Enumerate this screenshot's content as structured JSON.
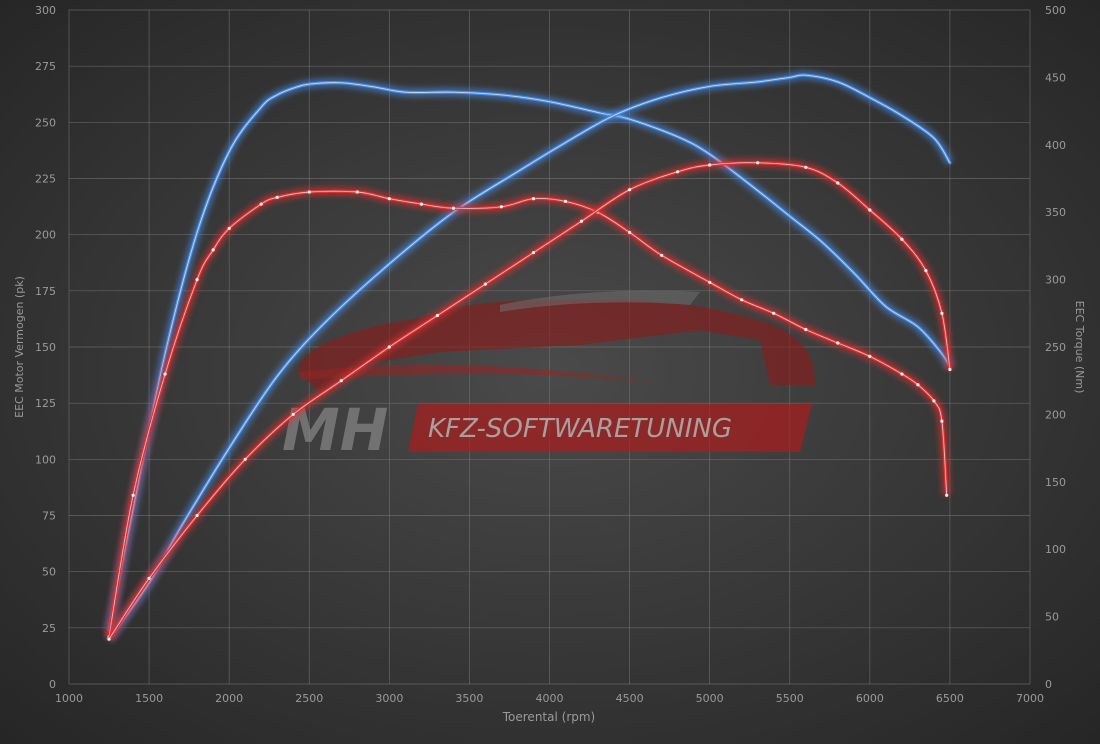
{
  "chart_data": {
    "type": "line",
    "xlabel": "Toerental (rpm)",
    "ylabel_left": "EEC Motor Vermogen (pk)",
    "ylabel_right": "EEC Torque (Nm)",
    "xlim": [
      1000,
      7000
    ],
    "ylim_left": [
      0,
      300
    ],
    "ylim_right": [
      0,
      500
    ],
    "x_ticks": [
      1000,
      1500,
      2000,
      2500,
      3000,
      3500,
      4000,
      4500,
      5000,
      5500,
      6000,
      6500,
      7000
    ],
    "y_ticks_left": [
      0,
      25,
      50,
      75,
      100,
      125,
      150,
      175,
      200,
      225,
      250,
      275,
      300
    ],
    "y_ticks_right": [
      0,
      50,
      100,
      150,
      200,
      250,
      300,
      350,
      400,
      450,
      500
    ],
    "grid": true,
    "logo": {
      "mark": "MH",
      "text": "KFZ-SOFTWARETUNING"
    },
    "colors": {
      "tuned": "#4a8ee8",
      "stock": "#e03030",
      "grid": "#7a7a7a",
      "text": "#9a9a9a"
    },
    "series": [
      {
        "key": "tuned_torque",
        "axis": "right",
        "color": "#4a8ee8",
        "dotted": false,
        "x": [
          1250,
          1400,
          1600,
          1800,
          2000,
          2200,
          2300,
          2400,
          2500,
          2700,
          2900,
          3100,
          3400,
          3700,
          4000,
          4300,
          4500,
          4800,
          5000,
          5300,
          5500,
          5700,
          5900,
          6100,
          6300,
          6450,
          6500
        ],
        "y": [
          40,
          130,
          245,
          335,
          395,
          428,
          437,
          442,
          445,
          446,
          443,
          439,
          439,
          437,
          432,
          424,
          419,
          406,
          393,
          366,
          347,
          328,
          305,
          280,
          265,
          245,
          235
        ]
      },
      {
        "key": "tuned_power",
        "axis": "left",
        "color": "#4a8ee8",
        "dotted": false,
        "x": [
          1250,
          1500,
          1700,
          2000,
          2300,
          2600,
          3000,
          3400,
          3800,
          4100,
          4400,
          4700,
          5000,
          5300,
          5500,
          5600,
          5800,
          6000,
          6200,
          6400,
          6500
        ],
        "y": [
          20,
          45,
          70,
          105,
          137,
          161,
          187,
          210,
          228,
          241,
          253,
          261,
          266,
          268,
          270,
          271,
          268,
          261,
          253,
          243,
          232
        ]
      },
      {
        "key": "stock_torque",
        "axis": "right",
        "color": "#e03030",
        "dotted": true,
        "x": [
          1250,
          1400,
          1600,
          1800,
          1900,
          2000,
          2200,
          2300,
          2500,
          2800,
          3000,
          3200,
          3400,
          3700,
          3900,
          4100,
          4300,
          4500,
          4700,
          5000,
          5200,
          5400,
          5600,
          5800,
          6000,
          6200,
          6300,
          6400,
          6450,
          6480
        ],
        "y": [
          35,
          140,
          230,
          300,
          322,
          338,
          356,
          361,
          365,
          365,
          360,
          356,
          353,
          354,
          360,
          358,
          350,
          335,
          318,
          298,
          285,
          275,
          263,
          253,
          243,
          230,
          222,
          210,
          195,
          140
        ]
      },
      {
        "key": "stock_power",
        "axis": "left",
        "color": "#e03030",
        "dotted": true,
        "x": [
          1250,
          1500,
          1800,
          2100,
          2400,
          2700,
          3000,
          3300,
          3600,
          3900,
          4200,
          4500,
          4800,
          5000,
          5300,
          5600,
          5800,
          6000,
          6200,
          6350,
          6450,
          6500
        ],
        "y": [
          20,
          47,
          75,
          100,
          120,
          135,
          150,
          164,
          178,
          192,
          206,
          220,
          228,
          231,
          232,
          230,
          223,
          211,
          198,
          184,
          165,
          140
        ]
      }
    ]
  }
}
